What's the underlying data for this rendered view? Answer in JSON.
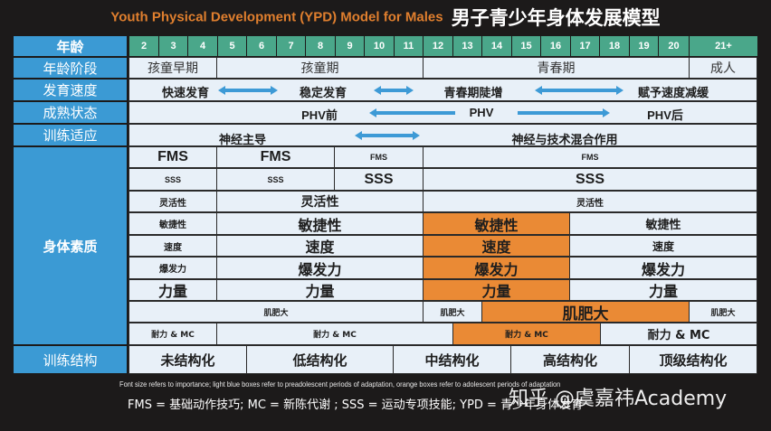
{
  "title": {
    "en": "Youth Physical Development (YPD) Model for Males",
    "zh": "男子青少年身体发展模型"
  },
  "colors": {
    "label_blue": "#3b9ad4",
    "age_green": "#4aa78a",
    "cell_light_blue": "#e8f0f8",
    "orange": "#ea8a35",
    "title_orange": "#e07f2e",
    "arrow_blue": "#3d9ad6",
    "background": "#1c1a1a"
  },
  "rows": {
    "age": {
      "label": "年龄",
      "ages": [
        "2",
        "3",
        "4",
        "5",
        "6",
        "7",
        "8",
        "9",
        "10",
        "11",
        "12",
        "13",
        "14",
        "15",
        "16",
        "17",
        "18",
        "19",
        "20",
        "21+"
      ]
    },
    "age_stage": {
      "label": "年龄阶段",
      "segments": [
        "孩童早期",
        "孩童期",
        "青春期",
        "成人"
      ]
    },
    "growth_rate": {
      "label": "发育速度",
      "items": [
        "快速发育",
        "稳定发育",
        "青春期陡增",
        "赋予速度减缓"
      ]
    },
    "maturation": {
      "label": "成熟状态",
      "items": [
        "PHV前",
        "PHV",
        "PHV后"
      ]
    },
    "training_adaptation": {
      "label": "训练适应",
      "items": [
        "神经主导",
        "神经与技术混合作用"
      ]
    },
    "physical_qualities": {
      "label": "身体素质",
      "fms": [
        "FMS",
        "FMS",
        "FMS",
        "FMS"
      ],
      "sss": [
        "SSS",
        "SSS",
        "SSS",
        "SSS"
      ],
      "mobility": [
        "灵活性",
        "灵活性",
        "灵活性"
      ],
      "agility": [
        "敏捷性",
        "敏捷性",
        "敏捷性",
        "敏捷性"
      ],
      "speed": [
        "速度",
        "速度",
        "速度",
        "速度"
      ],
      "power": [
        "爆发力",
        "爆发力",
        "爆发力",
        "爆发力"
      ],
      "strength": [
        "力量",
        "力量",
        "力量",
        "力量"
      ],
      "hypertrophy": [
        "肌肥大",
        "肌肥大",
        "肌肥大",
        "肌肥大"
      ],
      "endurance": [
        "耐力 & MC",
        "耐力 & MC",
        "耐力 & MC",
        "耐力 & MC"
      ]
    },
    "training_structure": {
      "label": "训练结构",
      "items": [
        "未结构化",
        "低结构化",
        "中结构化",
        "高结构化",
        "顶级结构化"
      ]
    }
  },
  "footer": {
    "note": "Font size refers to importance; light blue boxes refer to preadolescent periods of adaptation, orange boxes refer to adolescent periods of adaptation",
    "legend": "FMS = 基础动作技巧; MC = 新陈代谢 ; SSS = 运动专项技能; YPD = 青少年身体发育"
  },
  "watermark": "知乎 @虞嘉祎Academy"
}
